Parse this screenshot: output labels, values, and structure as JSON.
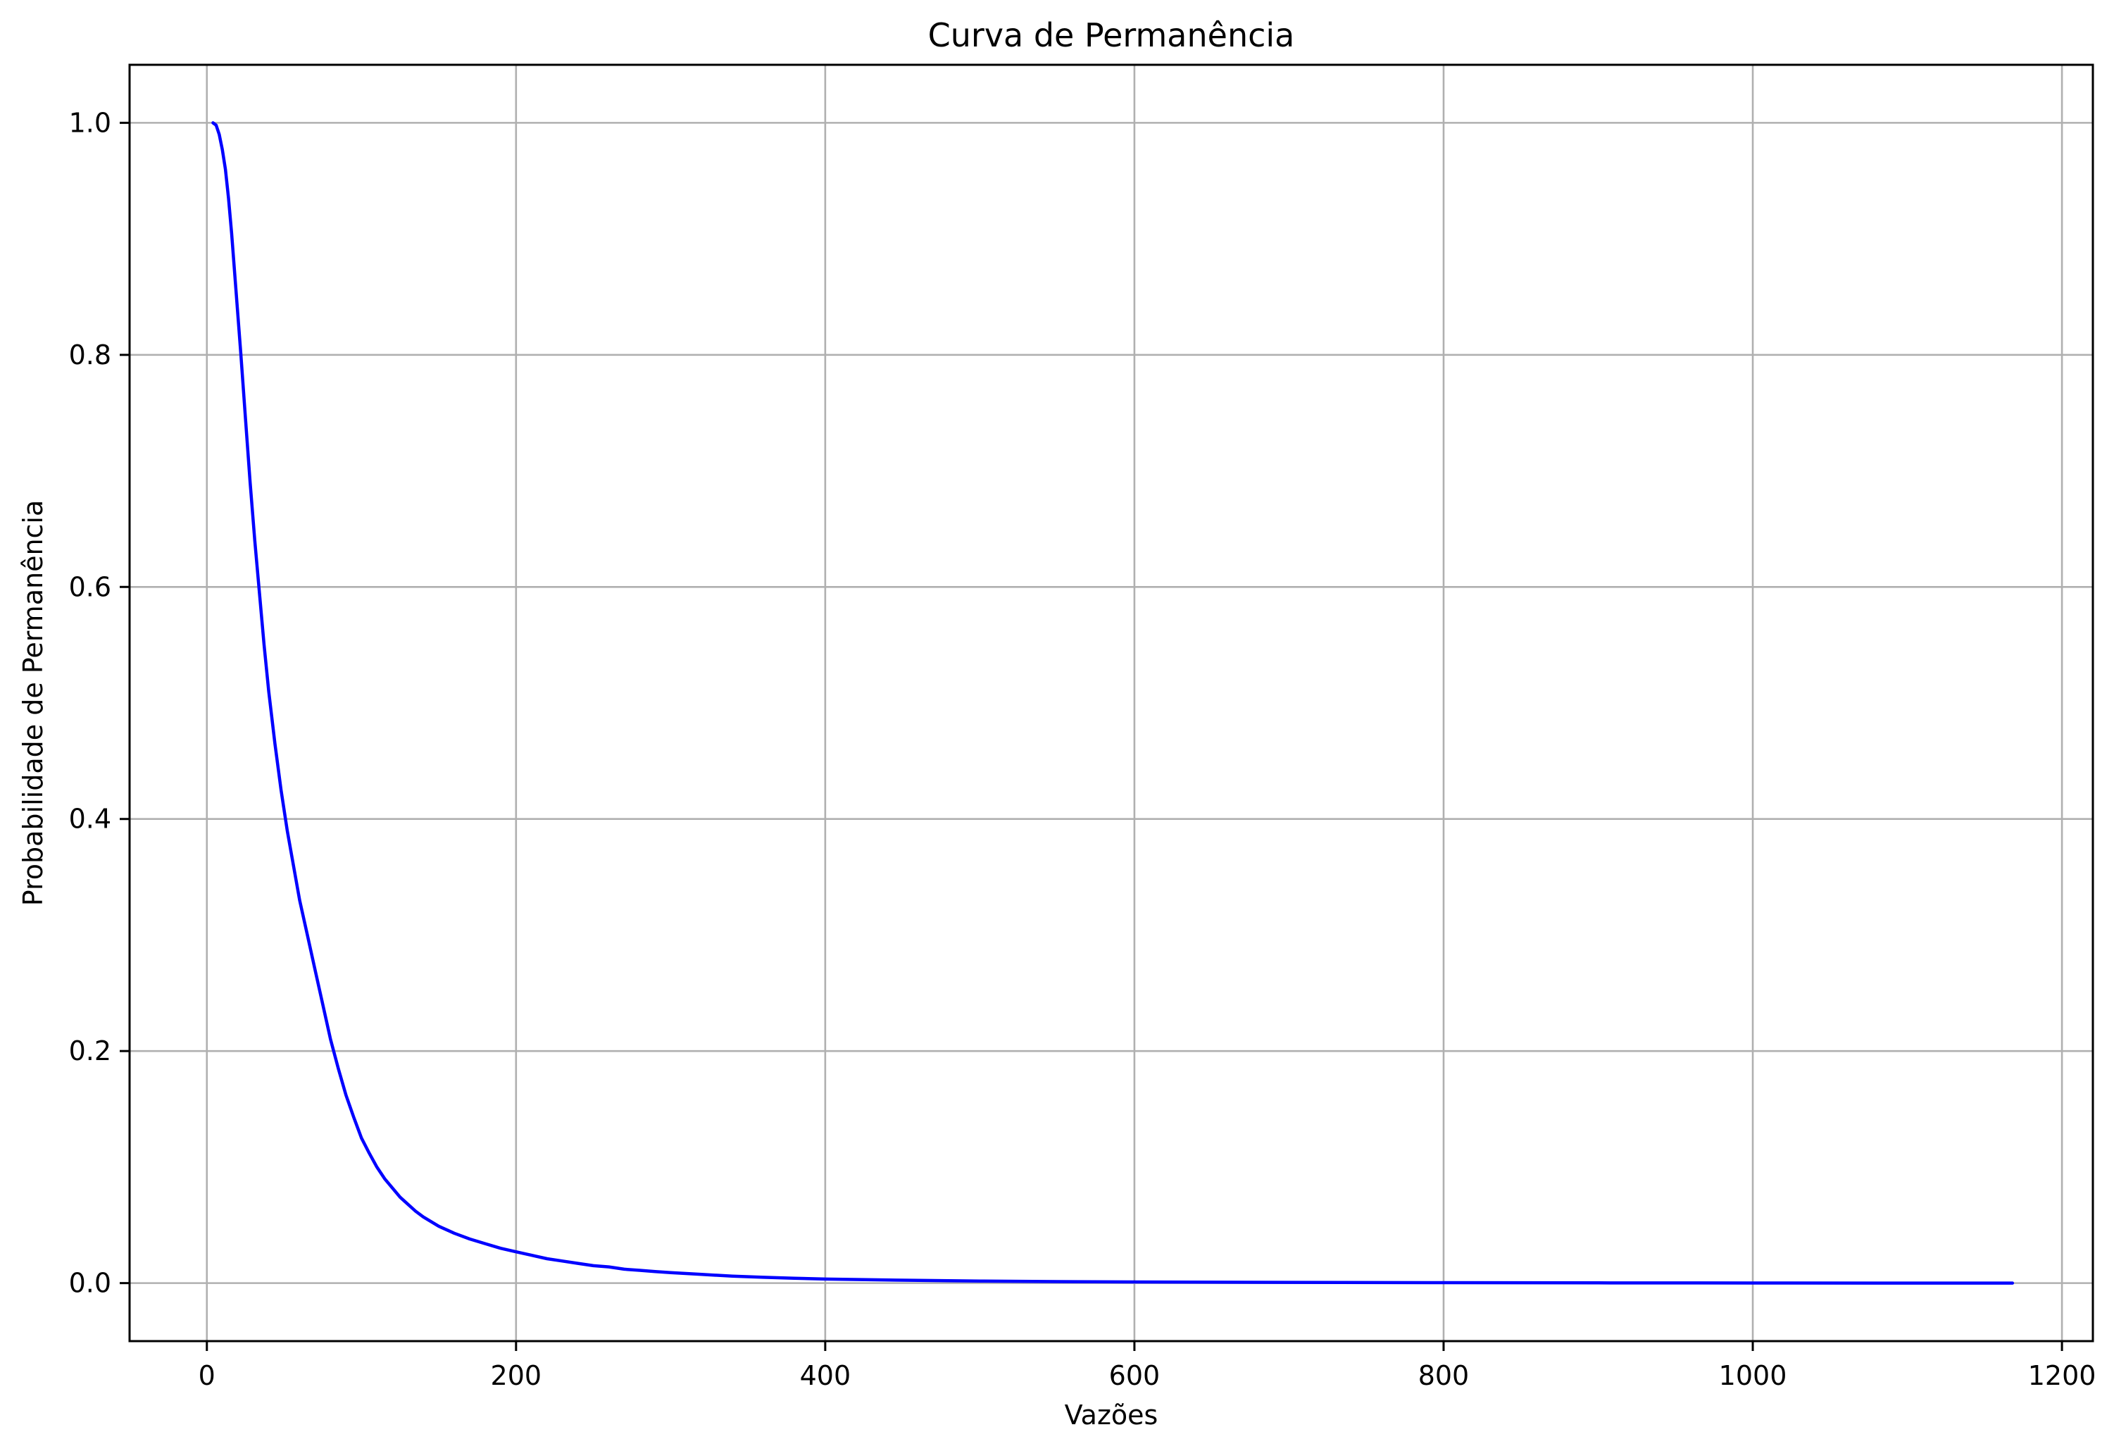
{
  "chart_data": {
    "type": "line",
    "title": "Curva de Permanência",
    "xlabel": "Vazões",
    "ylabel": "Probabilidade de Permanência",
    "xlim": [
      -50,
      1220
    ],
    "ylim": [
      -0.05,
      1.05
    ],
    "xticks": [
      0,
      200,
      400,
      600,
      800,
      1000,
      1200
    ],
    "xtick_labels": [
      "0",
      "200",
      "400",
      "600",
      "800",
      "1000",
      "1200"
    ],
    "yticks": [
      0.0,
      0.2,
      0.4,
      0.6,
      0.8,
      1.0
    ],
    "ytick_labels": [
      "0.0",
      "0.2",
      "0.4",
      "0.6",
      "0.8",
      "1.0"
    ],
    "grid": true,
    "legend": "none",
    "series": [
      {
        "color": "#0000ff",
        "x": [
          4,
          6,
          8,
          10,
          12,
          14,
          16,
          18,
          20,
          22,
          25,
          28,
          31,
          34,
          37,
          40,
          44,
          48,
          52,
          56,
          60,
          65,
          70,
          75,
          80,
          85,
          90,
          95,
          100,
          105,
          110,
          115,
          120,
          125,
          130,
          135,
          140,
          145,
          150,
          160,
          170,
          180,
          190,
          200,
          210,
          220,
          230,
          240,
          250,
          260,
          270,
          280,
          290,
          300,
          320,
          340,
          360,
          380,
          400,
          450,
          500,
          550,
          600,
          700,
          800,
          900,
          1000,
          1100,
          1168
        ],
        "y": [
          1.0,
          0.998,
          0.99,
          0.977,
          0.96,
          0.935,
          0.905,
          0.87,
          0.835,
          0.8,
          0.745,
          0.69,
          0.64,
          0.595,
          0.55,
          0.51,
          0.465,
          0.425,
          0.39,
          0.36,
          0.33,
          0.3,
          0.27,
          0.24,
          0.21,
          0.185,
          0.162,
          0.143,
          0.125,
          0.112,
          0.1,
          0.09,
          0.082,
          0.074,
          0.068,
          0.062,
          0.057,
          0.053,
          0.049,
          0.043,
          0.038,
          0.034,
          0.03,
          0.027,
          0.024,
          0.021,
          0.019,
          0.017,
          0.015,
          0.014,
          0.012,
          0.011,
          0.01,
          0.009,
          0.0075,
          0.006,
          0.005,
          0.0042,
          0.0035,
          0.0025,
          0.0018,
          0.0013,
          0.001,
          0.0006,
          0.0004,
          0.0002,
          0.0001,
          5e-05,
          0.0
        ]
      }
    ]
  }
}
